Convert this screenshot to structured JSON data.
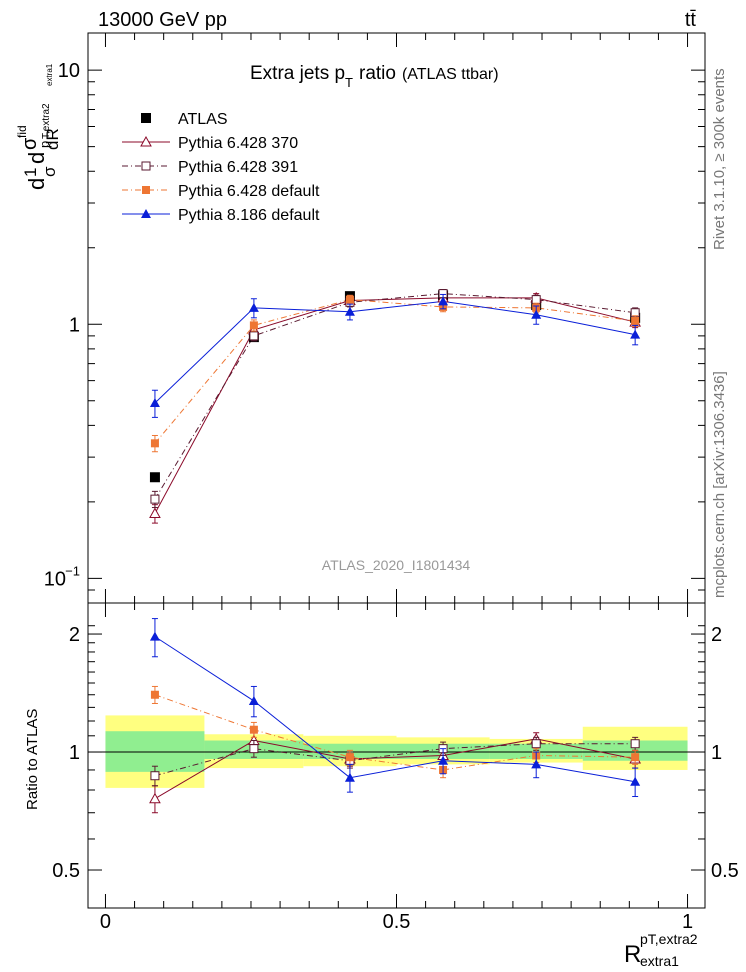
{
  "header": {
    "energy_label": "13000 GeV pp",
    "process_label": "tt̄",
    "rivet_label": "Rivet 3.1.10, ≥ 300k events",
    "source_label": "mcplots.cern.ch [arXiv:1306.3436]",
    "analysis_watermark": "ATLAS_2020_I1801434"
  },
  "chart_data": {
    "type": "line",
    "title": "Extra jets p",
    "title_sub": "T",
    "title_tail": "ratio",
    "title_paren": "(ATLAS ttbar)",
    "yscale": "log",
    "ylim": [
      0.08,
      14
    ],
    "xlim": [
      -0.03,
      1.03
    ],
    "ylabel": {
      "main": "d",
      "num_top": "1",
      "num_bot": "σ",
      "d2": "d",
      "sigma": "σ",
      "sigma_sup": "fid",
      "p_sub": "p",
      "p_sub2": "T,extra2",
      "p_sub3": "extra1",
      "den": "dR"
    },
    "xlabel": {
      "main": "R",
      "sup": "pT,extra2",
      "sub": "extra1"
    },
    "y_ticks": [
      {
        "value": 0.1,
        "base": "10",
        "exp": "−1"
      },
      {
        "value": 1,
        "base": "1",
        "exp": ""
      },
      {
        "value": 10,
        "base": "10",
        "exp": ""
      }
    ],
    "x_ticks": [
      {
        "value": 0,
        "label": "0"
      },
      {
        "value": 0.5,
        "label": "0.5"
      },
      {
        "value": 1,
        "label": "1"
      }
    ],
    "bin_edges": [
      0,
      0.17,
      0.34,
      0.5,
      0.66,
      0.82,
      1.0
    ],
    "x": [
      0.085,
      0.255,
      0.42,
      0.58,
      0.74,
      0.91
    ],
    "series": [
      {
        "name": "ATLAS",
        "kind": "data",
        "marker": "square-filled",
        "color": "#000000",
        "values": [
          0.25,
          0.89,
          1.29,
          1.3,
          1.19,
          1.06
        ],
        "errors": [
          0.0,
          0.0,
          0.0,
          0.0,
          0.0,
          0.0
        ]
      },
      {
        "name": "Pythia 6.428 370",
        "marker": "triangle-open",
        "color": "#8b0a2a",
        "dash": "",
        "values": [
          0.18,
          0.95,
          1.24,
          1.27,
          1.27,
          1.02
        ],
        "errors": [
          0.015,
          0.04,
          0.05,
          0.05,
          0.05,
          0.05
        ],
        "ratio": [
          0.76,
          1.07,
          0.96,
          0.98,
          1.08,
          0.96
        ],
        "ratio_err": [
          0.06,
          0.05,
          0.04,
          0.04,
          0.04,
          0.05
        ]
      },
      {
        "name": "Pythia 6.428 391",
        "marker": "square-open",
        "color": "#5a1a30",
        "dash": "6,3,1,3",
        "values": [
          0.205,
          0.9,
          1.22,
          1.32,
          1.25,
          1.11
        ],
        "errors": [
          0.015,
          0.04,
          0.05,
          0.05,
          0.05,
          0.05
        ],
        "ratio": [
          0.87,
          1.02,
          0.95,
          1.02,
          1.05,
          1.05
        ],
        "ratio_err": [
          0.05,
          0.05,
          0.04,
          0.04,
          0.04,
          0.04
        ]
      },
      {
        "name": "Pythia 6.428 default",
        "marker": "square-filled",
        "color": "#ee7633",
        "dash": "6,3,1,3",
        "values": [
          0.34,
          0.99,
          1.25,
          1.17,
          1.16,
          1.03
        ],
        "errors": [
          0.025,
          0.05,
          0.05,
          0.05,
          0.05,
          0.05
        ],
        "ratio": [
          1.4,
          1.14,
          0.97,
          0.9,
          0.98,
          0.97
        ],
        "ratio_err": [
          0.07,
          0.05,
          0.04,
          0.04,
          0.04,
          0.04
        ]
      },
      {
        "name": "Pythia 8.186 default",
        "marker": "triangle-filled",
        "color": "#0a1fd8",
        "dash": "",
        "values": [
          0.49,
          1.16,
          1.12,
          1.23,
          1.09,
          0.91
        ],
        "errors": [
          0.06,
          0.1,
          0.08,
          0.08,
          0.09,
          0.08
        ],
        "ratio": [
          1.97,
          1.35,
          0.86,
          0.95,
          0.93,
          0.84
        ],
        "ratio_err": [
          0.22,
          0.12,
          0.07,
          0.07,
          0.07,
          0.07
        ]
      }
    ],
    "ratio_panel": {
      "ylabel": "Ratio to ATLAS",
      "ylim": [
        0.4,
        2.4
      ],
      "y_ticks": [
        {
          "value": 0.5,
          "label": "0.5"
        },
        {
          "value": 1,
          "label": "1"
        },
        {
          "value": 2,
          "label": "2"
        }
      ],
      "band_inner": [
        {
          "lo": 0.0,
          "hi": 0.17,
          "down": 0.89,
          "up": 1.13
        },
        {
          "lo": 0.17,
          "hi": 0.34,
          "down": 0.96,
          "up": 1.07
        },
        {
          "lo": 0.34,
          "hi": 0.5,
          "down": 0.96,
          "up": 1.05
        },
        {
          "lo": 0.5,
          "hi": 0.66,
          "down": 0.96,
          "up": 1.05
        },
        {
          "lo": 0.66,
          "hi": 0.82,
          "down": 0.96,
          "up": 1.05
        },
        {
          "lo": 0.82,
          "hi": 1.0,
          "down": 0.95,
          "up": 1.07
        }
      ],
      "band_outer": [
        {
          "lo": 0.0,
          "hi": 0.17,
          "down": 0.81,
          "up": 1.24
        },
        {
          "lo": 0.17,
          "hi": 0.34,
          "down": 0.91,
          "up": 1.11
        },
        {
          "lo": 0.34,
          "hi": 0.5,
          "down": 0.92,
          "up": 1.1
        },
        {
          "lo": 0.5,
          "hi": 0.66,
          "down": 0.93,
          "up": 1.09
        },
        {
          "lo": 0.66,
          "hi": 0.82,
          "down": 0.94,
          "up": 1.08
        },
        {
          "lo": 0.82,
          "hi": 1.0,
          "down": 0.9,
          "up": 1.16
        }
      ]
    }
  }
}
